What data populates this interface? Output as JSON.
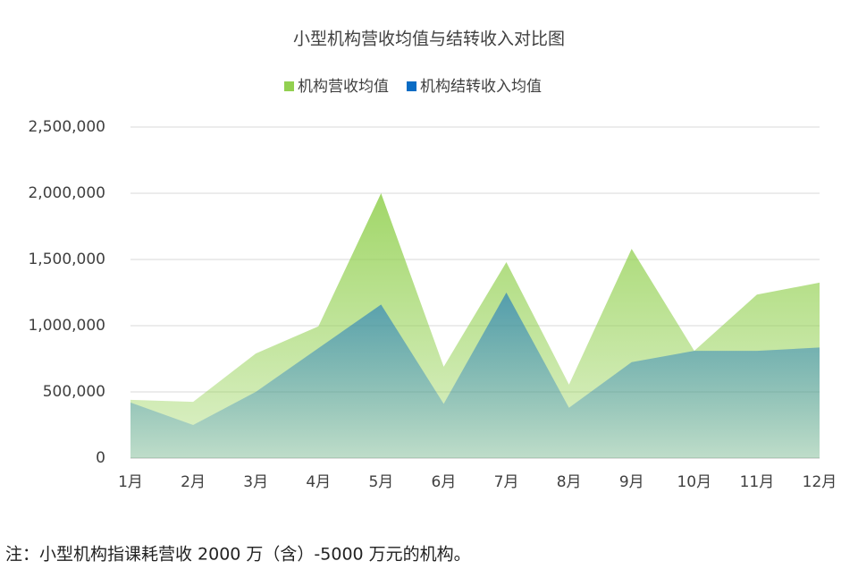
{
  "chart_data": {
    "type": "area",
    "title": "小型机构营收均值与结转收入对比图",
    "categories": [
      "1月",
      "2月",
      "3月",
      "4月",
      "5月",
      "6月",
      "7月",
      "8月",
      "9月",
      "10月",
      "11月",
      "12月"
    ],
    "series": [
      {
        "name": "机构营收均值",
        "color": "#92d050",
        "values": [
          440000,
          425000,
          790000,
          995000,
          2000000,
          690000,
          1480000,
          555000,
          1580000,
          810000,
          1235000,
          1325000
        ]
      },
      {
        "name": "机构结转收入均值",
        "color": "#0a6cc4",
        "values": [
          420000,
          250000,
          500000,
          830000,
          1160000,
          410000,
          1250000,
          380000,
          725000,
          810000,
          810000,
          835000
        ]
      }
    ],
    "ylim": [
      0,
      2500000
    ],
    "yticks": [
      0,
      {
        "value": 500000,
        "label": "500,000"
      },
      {
        "value": 1000000,
        "label": "1,000,000"
      },
      {
        "value": 1500000,
        "label": "1,500,000"
      },
      {
        "value": 2000000,
        "label": "2,000,000"
      },
      {
        "value": 2500000,
        "label": "2,500,000"
      }
    ],
    "grid": true,
    "legend": "top"
  },
  "note": "注：小型机构指课耗营收 2000 万（含）-5000 万元的机构。"
}
